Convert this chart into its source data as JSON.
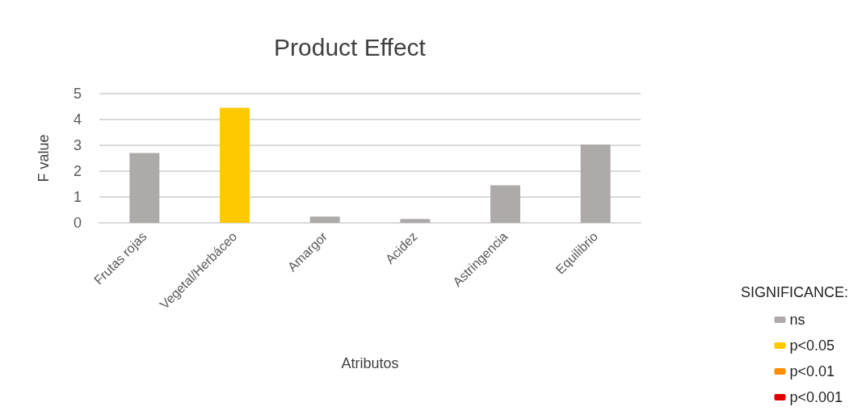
{
  "chart_data": {
    "type": "bar",
    "title": "Product Effect",
    "xlabel": "Atributos",
    "ylabel": "F value",
    "legend_title": "SIGNIFICANCE:",
    "categories": [
      "Frutas rojas",
      "Vegetal/Herbáceo",
      "Amargor",
      "Acidez",
      "Astringencia",
      "Equilibrio"
    ],
    "series": [
      {
        "name": "ns",
        "color": "#aeaaaa",
        "values": [
          2.7,
          null,
          0.24,
          0.15,
          1.45,
          3.03
        ]
      },
      {
        "name": "p<0.05",
        "color": "#ffc900",
        "values": [
          null,
          4.45,
          null,
          null,
          null,
          null
        ]
      },
      {
        "name": "p<0.01",
        "color": "#ff8c00",
        "values": [
          null,
          null,
          null,
          null,
          null,
          null
        ]
      },
      {
        "name": "p<0.001",
        "color": "#e00000",
        "values": [
          null,
          null,
          null,
          null,
          null,
          null
        ]
      }
    ],
    "stacked": true,
    "ylim": [
      0,
      5
    ],
    "yticks": [
      0,
      1,
      2,
      3,
      4,
      5
    ],
    "grid": "y",
    "legend": "bottom right"
  }
}
